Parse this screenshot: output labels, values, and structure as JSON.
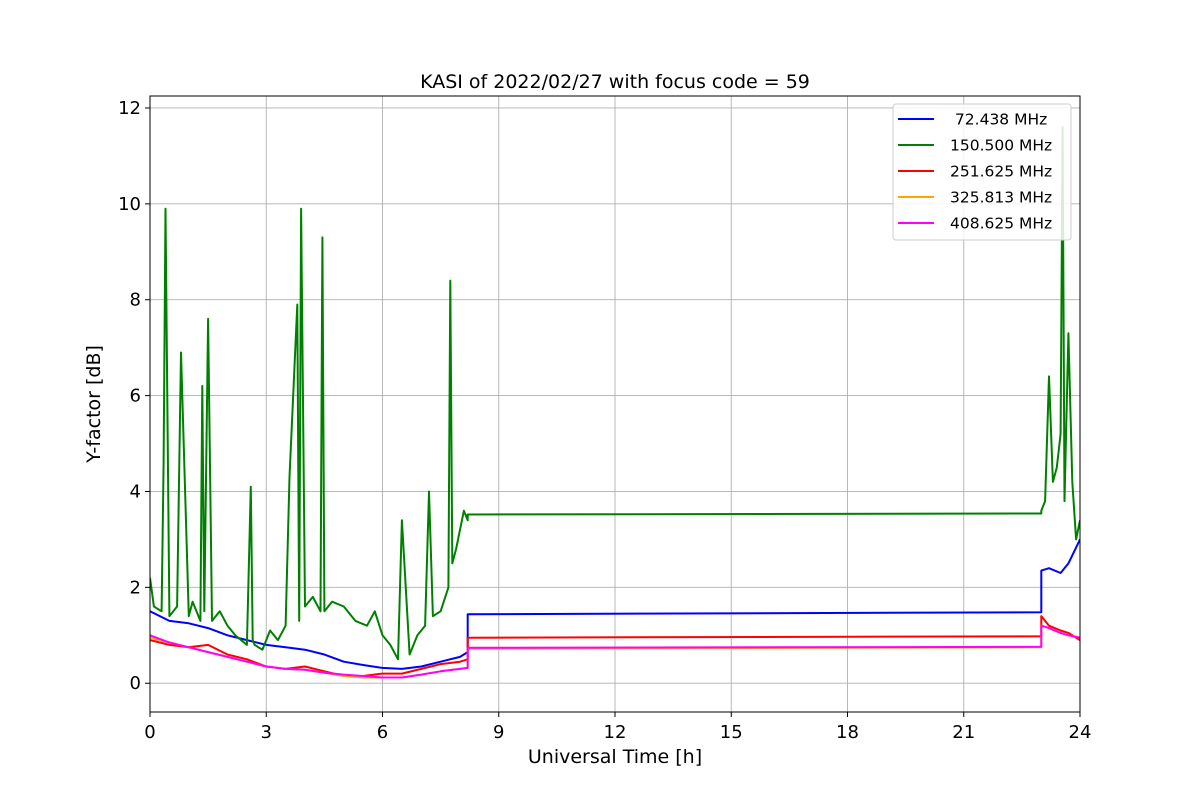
{
  "chart_data": {
    "type": "line",
    "title": "KASI of 2022/02/27 with focus code = 59",
    "xlabel": "Universal Time [h]",
    "ylabel": "Y-factor [dB]",
    "xlim": [
      0,
      24
    ],
    "ylim": [
      -0.6,
      12.25
    ],
    "xticks": [
      0,
      3,
      6,
      9,
      12,
      15,
      18,
      21,
      24
    ],
    "yticks": [
      0,
      2,
      4,
      6,
      8,
      10,
      12
    ],
    "grid": true,
    "legend_position": "top-right",
    "series": [
      {
        "name": " 72.438 MHz",
        "color": "#0000ff",
        "x": [
          0,
          0.5,
          1,
          1.5,
          2,
          2.5,
          3,
          3.5,
          4,
          4.5,
          5,
          5.5,
          6,
          6.5,
          7,
          7.5,
          8,
          8.2,
          8.2,
          23,
          23,
          23.2,
          23.5,
          23.7,
          24
        ],
        "y": [
          1.5,
          1.3,
          1.25,
          1.15,
          1.0,
          0.9,
          0.8,
          0.75,
          0.7,
          0.6,
          0.45,
          0.38,
          0.32,
          0.3,
          0.35,
          0.45,
          0.55,
          0.65,
          1.44,
          1.48,
          2.35,
          2.4,
          2.3,
          2.5,
          3.0
        ]
      },
      {
        "name": "150.500 MHz",
        "color": "#008000",
        "x": [
          0,
          0.1,
          0.3,
          0.35,
          0.4,
          0.5,
          0.7,
          0.8,
          1.0,
          1.1,
          1.3,
          1.35,
          1.4,
          1.5,
          1.6,
          1.8,
          2.0,
          2.2,
          2.5,
          2.6,
          2.65,
          2.7,
          2.9,
          3.1,
          3.3,
          3.5,
          3.6,
          3.8,
          3.85,
          3.9,
          4.0,
          4.2,
          4.4,
          4.45,
          4.5,
          4.7,
          5.0,
          5.3,
          5.6,
          5.8,
          6.0,
          6.2,
          6.4,
          6.5,
          6.7,
          6.9,
          7.1,
          7.2,
          7.3,
          7.5,
          7.7,
          7.75,
          7.8,
          7.9,
          8.0,
          8.1,
          8.2,
          8.2,
          23,
          23,
          23.1,
          23.2,
          23.3,
          23.4,
          23.5,
          23.55,
          23.6,
          23.7,
          23.8,
          23.9,
          24
        ],
        "y": [
          2.2,
          1.6,
          1.5,
          4.6,
          9.9,
          1.4,
          1.6,
          6.9,
          1.4,
          1.7,
          1.3,
          6.2,
          1.5,
          7.6,
          1.3,
          1.5,
          1.2,
          1.0,
          0.8,
          4.1,
          0.9,
          0.8,
          0.7,
          1.1,
          0.9,
          1.2,
          4.3,
          7.9,
          1.3,
          9.9,
          1.6,
          1.8,
          1.5,
          9.3,
          1.5,
          1.7,
          1.6,
          1.3,
          1.2,
          1.5,
          1.0,
          0.8,
          0.5,
          3.4,
          0.6,
          1.0,
          1.2,
          4.0,
          1.4,
          1.5,
          2.0,
          8.4,
          2.5,
          2.8,
          3.2,
          3.6,
          3.4,
          3.52,
          3.54,
          3.6,
          3.8,
          6.4,
          4.2,
          4.5,
          5.2,
          11.6,
          3.8,
          7.3,
          4.2,
          3.0,
          3.4
        ]
      },
      {
        "name": "251.625 MHz",
        "color": "#ff0000",
        "x": [
          0,
          0.5,
          1,
          1.5,
          2,
          2.5,
          3,
          3.5,
          4,
          4.5,
          5,
          5.5,
          6,
          6.5,
          7,
          7.5,
          8,
          8.2,
          8.2,
          23,
          23,
          23.2,
          23.5,
          23.7,
          24
        ],
        "y": [
          0.9,
          0.8,
          0.75,
          0.8,
          0.6,
          0.5,
          0.35,
          0.3,
          0.35,
          0.25,
          0.15,
          0.15,
          0.2,
          0.2,
          0.3,
          0.4,
          0.45,
          0.5,
          0.95,
          0.98,
          1.4,
          1.2,
          1.1,
          1.05,
          0.9
        ]
      },
      {
        "name": "325.813 MHz",
        "color": "#ffa500",
        "x": [
          0,
          0.5,
          1,
          1.5,
          2,
          2.5,
          3,
          3.5,
          4,
          4.5,
          5,
          5.5,
          6,
          6.5,
          7,
          7.5,
          8,
          8.2,
          8.2,
          23,
          23,
          23.2,
          23.5,
          23.7,
          24
        ],
        "y": [
          0.95,
          0.85,
          0.75,
          0.65,
          0.55,
          0.45,
          0.35,
          0.3,
          0.28,
          0.22,
          0.15,
          0.12,
          0.12,
          0.12,
          0.18,
          0.25,
          0.3,
          0.32,
          0.72,
          0.75,
          1.2,
          1.15,
          1.05,
          1.0,
          0.95
        ]
      },
      {
        "name": "408.625 MHz",
        "color": "#ff00ff",
        "x": [
          0,
          0.5,
          1,
          1.5,
          2,
          2.5,
          3,
          3.5,
          4,
          4.5,
          5,
          5.5,
          6,
          6.5,
          7,
          7.5,
          8,
          8.2,
          8.2,
          23,
          23,
          23.2,
          23.5,
          23.7,
          24
        ],
        "y": [
          1.0,
          0.85,
          0.75,
          0.65,
          0.55,
          0.45,
          0.35,
          0.3,
          0.28,
          0.22,
          0.18,
          0.15,
          0.12,
          0.12,
          0.18,
          0.25,
          0.3,
          0.32,
          0.74,
          0.76,
          1.2,
          1.15,
          1.05,
          1.0,
          0.95
        ]
      }
    ]
  }
}
